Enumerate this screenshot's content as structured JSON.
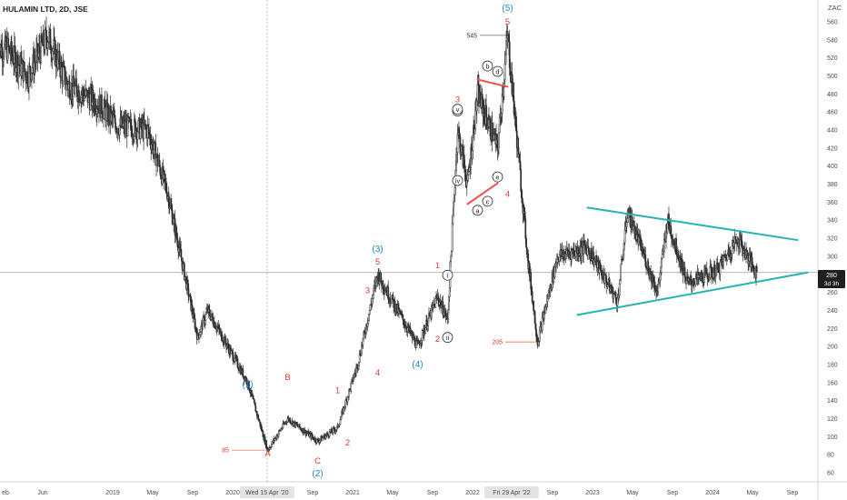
{
  "header": {
    "symbol": "HULAMIN LTD, 2D, JSE"
  },
  "currency": "ZAC",
  "price_badge": {
    "price": "280",
    "countdown": "3d 3h"
  },
  "crosshair": {
    "x_date_label": "Wed 15 Apr '20"
  },
  "highlighted_date": "Fri 29 Apr '22",
  "colors": {
    "candle": "#2b2b2b",
    "red_label": "#e53935",
    "blue_label": "#1e88c8",
    "red_line": "#ef5350",
    "teal_line": "#26b3b3",
    "axis_text": "#4a4a4a",
    "crosshair": "#9e9e9e"
  },
  "chart_data": {
    "type": "candlestick",
    "title": "HULAMIN LTD, 2D, JSE",
    "x_ticks": [
      "eb",
      "Jun",
      "2019",
      "May",
      "Sep",
      "2020",
      "Wed 15 Apr '20",
      "Sep",
      "2021",
      "May",
      "Sep",
      "2022",
      "Fri 29 Apr '22",
      "Sep",
      "2023",
      "May",
      "Sep",
      "2024",
      "May",
      "Sep"
    ],
    "y_ticks": [
      60,
      80,
      100,
      120,
      140,
      160,
      180,
      200,
      220,
      240,
      260,
      280,
      300,
      320,
      340,
      360,
      380,
      400,
      420,
      440,
      460,
      480,
      500,
      520,
      540,
      560
    ],
    "ylim": [
      52,
      572
    ],
    "grid": false,
    "price_path_keyframes": [
      {
        "date": "2018-02",
        "price": 530
      },
      {
        "date": "2018-04",
        "price": 500
      },
      {
        "date": "2018-06",
        "price": 545
      },
      {
        "date": "2018-08",
        "price": 490
      },
      {
        "date": "2018-11",
        "price": 470
      },
      {
        "date": "2019-01",
        "price": 445
      },
      {
        "date": "2019-04",
        "price": 440
      },
      {
        "date": "2019-06",
        "price": 370
      },
      {
        "date": "2019-09",
        "price": 210
      },
      {
        "date": "2019-10",
        "price": 240
      },
      {
        "date": "2019-12",
        "price": 200
      },
      {
        "date": "2020-02",
        "price": 160
      },
      {
        "date": "2020-04",
        "price": 85
      },
      {
        "date": "2020-06",
        "price": 120
      },
      {
        "date": "2020-09",
        "price": 95
      },
      {
        "date": "2020-11",
        "price": 110
      },
      {
        "date": "2021-01",
        "price": 180
      },
      {
        "date": "2021-03",
        "price": 280
      },
      {
        "date": "2021-06",
        "price": 220
      },
      {
        "date": "2021-07",
        "price": 200
      },
      {
        "date": "2021-09",
        "price": 255
      },
      {
        "date": "2021-10",
        "price": 230
      },
      {
        "date": "2021-11",
        "price": 440
      },
      {
        "date": "2021-12",
        "price": 380
      },
      {
        "date": "2022-01",
        "price": 480
      },
      {
        "date": "2022-03",
        "price": 420
      },
      {
        "date": "2022-04",
        "price": 545
      },
      {
        "date": "2022-06",
        "price": 300
      },
      {
        "date": "2022-07",
        "price": 205
      },
      {
        "date": "2022-09",
        "price": 300
      },
      {
        "date": "2022-12",
        "price": 310
      },
      {
        "date": "2023-03",
        "price": 250
      },
      {
        "date": "2023-04",
        "price": 350
      },
      {
        "date": "2023-07",
        "price": 260
      },
      {
        "date": "2023-08",
        "price": 340
      },
      {
        "date": "2023-10",
        "price": 270
      },
      {
        "date": "2024-01",
        "price": 285
      },
      {
        "date": "2024-03",
        "price": 320
      },
      {
        "date": "2024-05",
        "price": 280
      }
    ],
    "price_levels": [
      {
        "label": "545",
        "price": 545
      },
      {
        "label": "205",
        "price": 205
      },
      {
        "label": "85",
        "price": 85
      }
    ],
    "annotations": [
      {
        "text": "(1)",
        "date": "2020-02",
        "price": 155,
        "color": "blue"
      },
      {
        "text": "B",
        "date": "2020-06",
        "price": 163,
        "color": "red"
      },
      {
        "text": "A",
        "date": "2020-04",
        "price": 78,
        "color": "red"
      },
      {
        "text": "C",
        "date": "2020-09",
        "price": 70,
        "color": "red"
      },
      {
        "text": "(2)",
        "date": "2020-09",
        "price": 56,
        "color": "blue"
      },
      {
        "text": "1",
        "date": "2020-11",
        "price": 148,
        "color": "red"
      },
      {
        "text": "2",
        "date": "2020-12",
        "price": 90,
        "color": "red"
      },
      {
        "text": "3",
        "date": "2021-02",
        "price": 259,
        "color": "red"
      },
      {
        "text": "4",
        "date": "2021-03",
        "price": 168,
        "color": "red"
      },
      {
        "text": "5",
        "date": "2021-03",
        "price": 291,
        "color": "red"
      },
      {
        "text": "(3)",
        "date": "2021-03",
        "price": 305,
        "color": "blue"
      },
      {
        "text": "(4)",
        "date": "2021-07",
        "price": 177,
        "color": "blue"
      },
      {
        "text": "1",
        "date": "2021-09",
        "price": 287,
        "color": "red"
      },
      {
        "text": "2",
        "date": "2021-09",
        "price": 205,
        "color": "red"
      },
      {
        "text": "3",
        "date": "2021-11",
        "price": 471,
        "color": "red"
      },
      {
        "text": "4",
        "date": "2022-04",
        "price": 366,
        "color": "red"
      },
      {
        "text": "5",
        "date": "2022-04",
        "price": 557,
        "color": "red"
      },
      {
        "text": "(5)",
        "date": "2022-04",
        "price": 572,
        "color": "blue"
      }
    ],
    "circled_labels": [
      {
        "text": "i",
        "date": "2021-10",
        "price": 276
      },
      {
        "text": "ii",
        "date": "2021-10",
        "price": 207
      },
      {
        "text": "iii",
        "date": "2021-11",
        "price": 458
      },
      {
        "text": "v",
        "date": "2021-11",
        "price": 460
      },
      {
        "text": "iv",
        "date": "2021-11",
        "price": 381
      },
      {
        "text": "a",
        "date": "2022-01",
        "price": 348
      },
      {
        "text": "b",
        "date": "2022-02",
        "price": 508
      },
      {
        "text": "c",
        "date": "2022-02",
        "price": 358
      },
      {
        "text": "d",
        "date": "2022-03",
        "price": 502
      },
      {
        "text": "e",
        "date": "2022-03",
        "price": 385
      }
    ],
    "trendlines": [
      {
        "name": "triangle-upper",
        "color": "red",
        "from": {
          "date": "2022-01",
          "price": 496
        },
        "to": {
          "date": "2022-04",
          "price": 488
        }
      },
      {
        "name": "triangle-lower",
        "color": "red",
        "from": {
          "date": "2021-12",
          "price": 358
        },
        "to": {
          "date": "2022-03",
          "price": 381
        }
      },
      {
        "name": "pennant-upper",
        "color": "teal",
        "from": {
          "date": "2022-12",
          "price": 354
        },
        "to": {
          "date": "2024-09",
          "price": 318
        }
      },
      {
        "name": "pennant-lower",
        "color": "teal",
        "from": {
          "date": "2022-11",
          "price": 235
        },
        "to": {
          "date": "2024-10",
          "price": 282
        }
      }
    ]
  }
}
